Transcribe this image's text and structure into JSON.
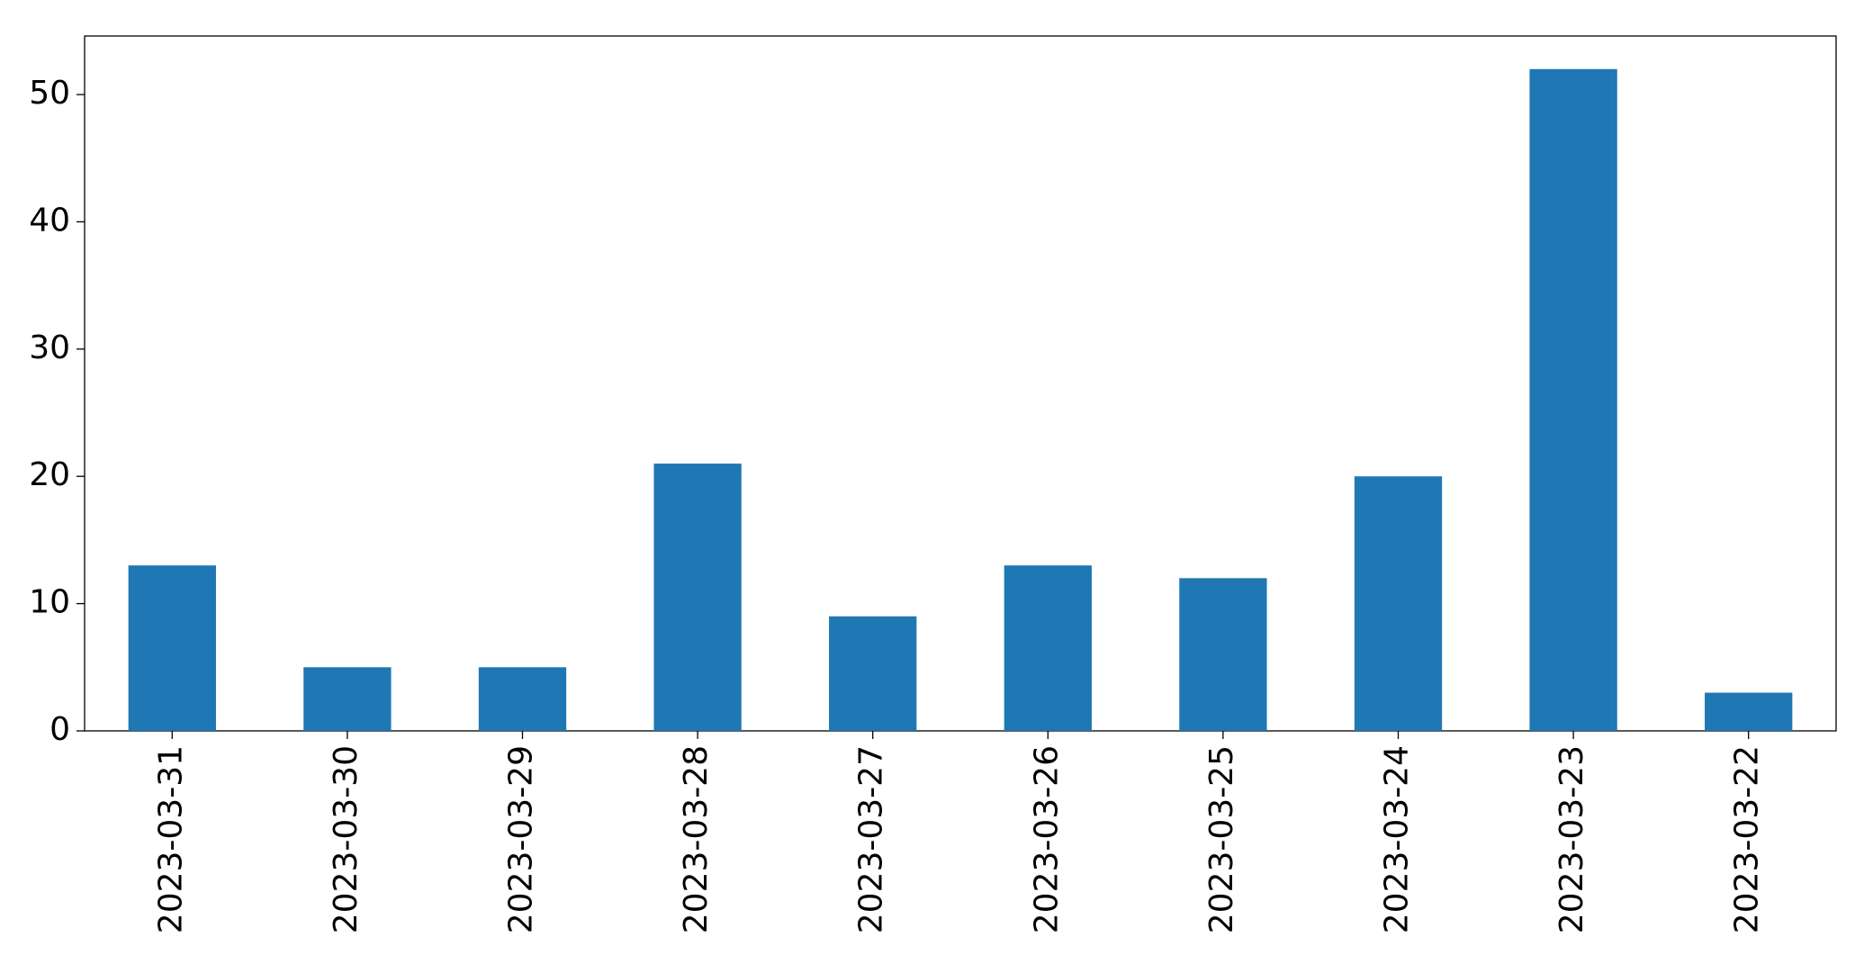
{
  "chart_data": {
    "type": "bar",
    "categories": [
      "2023-03-31",
      "2023-03-30",
      "2023-03-29",
      "2023-03-28",
      "2023-03-27",
      "2023-03-26",
      "2023-03-25",
      "2023-03-24",
      "2023-03-23",
      "2023-03-22"
    ],
    "values": [
      13,
      5,
      5,
      21,
      9,
      13,
      12,
      20,
      52,
      3
    ],
    "color": "#1f77b4",
    "ylim": [
      0,
      54.6
    ],
    "yticks": [
      0,
      10,
      20,
      30,
      40,
      50
    ],
    "grid": false
  }
}
